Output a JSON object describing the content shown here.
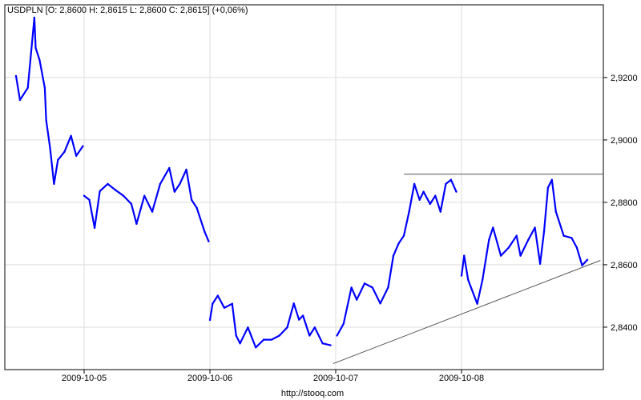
{
  "header": {
    "text": "USDPLN [O: 2,8600  H: 2,8615  L: 2,8600  C: 2,8615] (+0,06%)"
  },
  "footer": {
    "source": "http://stooq.com"
  },
  "chart_data": {
    "type": "line",
    "title": "USDPLN [O: 2,8600  H: 2,8615  L: 2,8600  C: 2,8615] (+0,06%)",
    "colors": {
      "series": "#0000ff",
      "lines": "#555555",
      "grid": "#dddddd"
    },
    "ylim": [
      2.8264,
      2.9433
    ],
    "yticks": [
      2.92,
      2.9,
      2.88,
      2.86,
      2.84
    ],
    "ytick_labels": [
      "2,9200",
      "2,9000",
      "2,8800",
      "2,8600",
      "2,8400"
    ],
    "xticks": [
      "2009-10-05",
      "2009-10-06",
      "2009-10-07",
      "2009-10-08"
    ],
    "grid": true,
    "y_axis_side": "right",
    "segments": [
      [
        [
          "2009-10-04 11:00",
          2.9205
        ],
        [
          "2009-10-04 11:45",
          2.9128
        ],
        [
          "2009-10-04 13:15",
          2.9167
        ],
        [
          "2009-10-04 14:30",
          2.9392
        ],
        [
          "2009-10-04 14:45",
          2.9295
        ],
        [
          "2009-10-04 15:30",
          2.9256
        ],
        [
          "2009-10-04 16:30",
          2.9167
        ],
        [
          "2009-10-04 16:45",
          2.9064
        ],
        [
          "2009-10-04 17:30",
          2.8974
        ],
        [
          "2009-10-04 18:15",
          2.8859
        ],
        [
          "2009-10-04 19:00",
          2.8936
        ],
        [
          "2009-10-04 20:15",
          2.8962
        ],
        [
          "2009-10-04 21:30",
          2.9013
        ],
        [
          "2009-10-04 22:30",
          2.8949
        ],
        [
          "2009-10-04 23:45",
          2.898
        ]
      ],
      [
        [
          "2009-10-05 00:00",
          2.8821
        ],
        [
          "2009-10-05 01:00",
          2.8808
        ],
        [
          "2009-10-05 02:00",
          2.8718
        ],
        [
          "2009-10-05 03:00",
          2.8836
        ],
        [
          "2009-10-05 04:30",
          2.8859
        ],
        [
          "2009-10-05 06:00",
          2.8839
        ],
        [
          "2009-10-05 07:30",
          2.8821
        ],
        [
          "2009-10-05 09:00",
          2.8795
        ],
        [
          "2009-10-05 10:00",
          2.8731
        ],
        [
          "2009-10-05 11:30",
          2.8821
        ],
        [
          "2009-10-05 13:00",
          2.877
        ],
        [
          "2009-10-05 14:30",
          2.8859
        ],
        [
          "2009-10-05 16:15",
          2.891
        ],
        [
          "2009-10-05 17:15",
          2.8834
        ],
        [
          "2009-10-05 18:15",
          2.8859
        ],
        [
          "2009-10-05 19:30",
          2.8905
        ],
        [
          "2009-10-05 20:30",
          2.8808
        ],
        [
          "2009-10-05 21:30",
          2.8782
        ],
        [
          "2009-10-05 23:00",
          2.8705
        ],
        [
          "2009-10-05 23:45",
          2.8675
        ]
      ],
      [
        [
          "2009-10-06 00:00",
          2.8423
        ],
        [
          "2009-10-06 00:30",
          2.8475
        ],
        [
          "2009-10-06 01:30",
          2.8501
        ],
        [
          "2009-10-06 02:45",
          2.8462
        ],
        [
          "2009-10-06 04:15",
          2.8475
        ],
        [
          "2009-10-06 05:00",
          2.8373
        ],
        [
          "2009-10-06 05:45",
          2.8348
        ],
        [
          "2009-10-06 07:15",
          2.8399
        ],
        [
          "2009-10-06 08:45",
          2.8335
        ],
        [
          "2009-10-06 10:15",
          2.836
        ],
        [
          "2009-10-06 11:45",
          2.836
        ],
        [
          "2009-10-06 13:15",
          2.8373
        ],
        [
          "2009-10-06 14:45",
          2.8399
        ],
        [
          "2009-10-06 16:00",
          2.8476
        ],
        [
          "2009-10-06 17:00",
          2.8424
        ],
        [
          "2009-10-06 17:45",
          2.8437
        ],
        [
          "2009-10-06 19:00",
          2.8373
        ],
        [
          "2009-10-06 20:00",
          2.8399
        ],
        [
          "2009-10-06 21:30",
          2.8348
        ],
        [
          "2009-10-06 23:00",
          2.8342
        ]
      ],
      [
        [
          "2009-10-07 00:15",
          2.8373
        ],
        [
          "2009-10-07 01:30",
          2.8411
        ],
        [
          "2009-10-07 03:00",
          2.8527
        ],
        [
          "2009-10-07 04:00",
          2.8488
        ],
        [
          "2009-10-07 05:30",
          2.854
        ],
        [
          "2009-10-07 07:00",
          2.8527
        ],
        [
          "2009-10-07 08:30",
          2.8476
        ],
        [
          "2009-10-07 10:00",
          2.8527
        ],
        [
          "2009-10-07 11:00",
          2.8629
        ],
        [
          "2009-10-07 12:00",
          2.8668
        ],
        [
          "2009-10-07 13:00",
          2.8693
        ],
        [
          "2009-10-07 14:00",
          2.877
        ],
        [
          "2009-10-07 15:00",
          2.8859
        ],
        [
          "2009-10-07 16:00",
          2.8808
        ],
        [
          "2009-10-07 16:45",
          2.8834
        ],
        [
          "2009-10-07 18:00",
          2.8795
        ],
        [
          "2009-10-07 19:00",
          2.8821
        ],
        [
          "2009-10-07 20:00",
          2.877
        ],
        [
          "2009-10-07 21:00",
          2.8859
        ],
        [
          "2009-10-07 22:00",
          2.8872
        ],
        [
          "2009-10-07 23:00",
          2.8834
        ]
      ],
      [
        [
          "2009-10-08 00:00",
          2.8565
        ],
        [
          "2009-10-08 00:30",
          2.8629
        ],
        [
          "2009-10-08 01:15",
          2.8552
        ],
        [
          "2009-10-08 03:00",
          2.8475
        ],
        [
          "2009-10-08 04:00",
          2.8552
        ],
        [
          "2009-10-08 05:15",
          2.868
        ],
        [
          "2009-10-08 06:00",
          2.8719
        ],
        [
          "2009-10-08 07:30",
          2.8629
        ],
        [
          "2009-10-08 09:00",
          2.8655
        ],
        [
          "2009-10-08 10:30",
          2.8693
        ],
        [
          "2009-10-08 11:15",
          2.8629
        ],
        [
          "2009-10-08 12:45",
          2.868
        ],
        [
          "2009-10-08 14:00",
          2.8719
        ],
        [
          "2009-10-08 15:00",
          2.8603
        ],
        [
          "2009-10-08 15:45",
          2.8706
        ],
        [
          "2009-10-08 16:30",
          2.8847
        ],
        [
          "2009-10-08 17:15",
          2.8872
        ],
        [
          "2009-10-08 18:00",
          2.877
        ],
        [
          "2009-10-08 19:30",
          2.8693
        ],
        [
          "2009-10-08 21:00",
          2.8686
        ],
        [
          "2009-10-08 22:00",
          2.8655
        ],
        [
          "2009-10-08 23:00",
          2.8598
        ],
        [
          "2009-10-09 00:00",
          2.8616
        ]
      ]
    ],
    "annotations": [
      {
        "type": "horizontal-line",
        "from": "2009-10-07 13:00",
        "y": 2.889
      },
      {
        "type": "trend-line",
        "points": [
          [
            "2009-10-06 23:30",
            2.8283
          ],
          [
            "2009-10-09 02:30",
            2.8614
          ]
        ]
      }
    ]
  }
}
